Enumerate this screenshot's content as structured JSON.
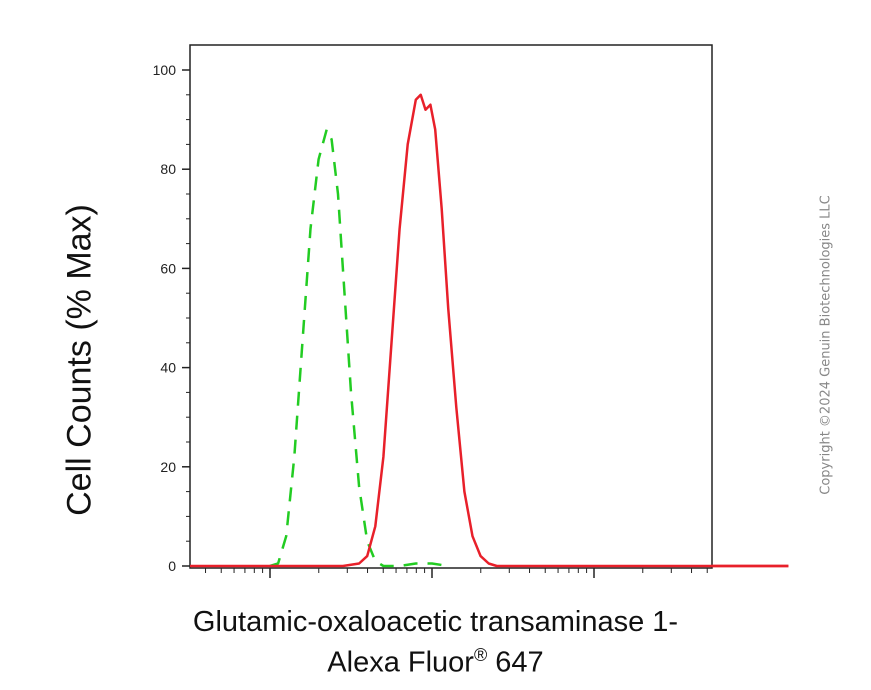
{
  "chart_data": {
    "type": "line",
    "title": "",
    "ylabel": "Cell Counts (% Max)",
    "xlabel_line1": "Glutamic-oxaloacetic transaminase 1-",
    "xlabel_line2_prefix": "Alexa Fluor",
    "xlabel_line2_sup": "®",
    "xlabel_line2_suffix": " 647",
    "ylim": [
      0,
      105
    ],
    "yticks": [
      0,
      20,
      40,
      60,
      80,
      100
    ],
    "xscale": "log",
    "xlim_decades": [
      0,
      3.2
    ],
    "xticklabels_shown": false,
    "grid": false,
    "legend": "none",
    "series": [
      {
        "style": "dashed",
        "color": "#22cc22",
        "x_decade": [
          0.0,
          0.05,
          0.1,
          0.15,
          0.2,
          0.25,
          0.3,
          0.35,
          0.38,
          0.42,
          0.46,
          0.5,
          0.55,
          0.6,
          0.65,
          0.7,
          0.8,
          0.9,
          1.0,
          1.1
        ],
        "values": [
          0,
          0.5,
          6,
          22,
          45,
          68,
          82,
          88,
          86,
          75,
          55,
          35,
          16,
          5,
          1,
          0,
          0,
          0.5,
          0.5,
          0
        ]
      },
      {
        "style": "solid",
        "color": "#e8202a",
        "x_decade": [
          0.0,
          0.3,
          0.45,
          0.55,
          0.6,
          0.65,
          0.7,
          0.75,
          0.8,
          0.85,
          0.9,
          0.93,
          0.96,
          0.99,
          1.02,
          1.06,
          1.1,
          1.15,
          1.2,
          1.25,
          1.3,
          1.35,
          1.4,
          1.45,
          1.5,
          1.6,
          2.0,
          3.2
        ],
        "values": [
          0,
          0,
          0,
          0.5,
          2,
          8,
          22,
          45,
          68,
          85,
          94,
          95,
          92,
          93,
          88,
          72,
          52,
          32,
          15,
          6,
          2,
          0.5,
          0,
          0,
          0,
          0,
          0,
          0
        ]
      }
    ]
  },
  "watermark": "Copyright ©2024 Genuin Biotechnologies LLC"
}
